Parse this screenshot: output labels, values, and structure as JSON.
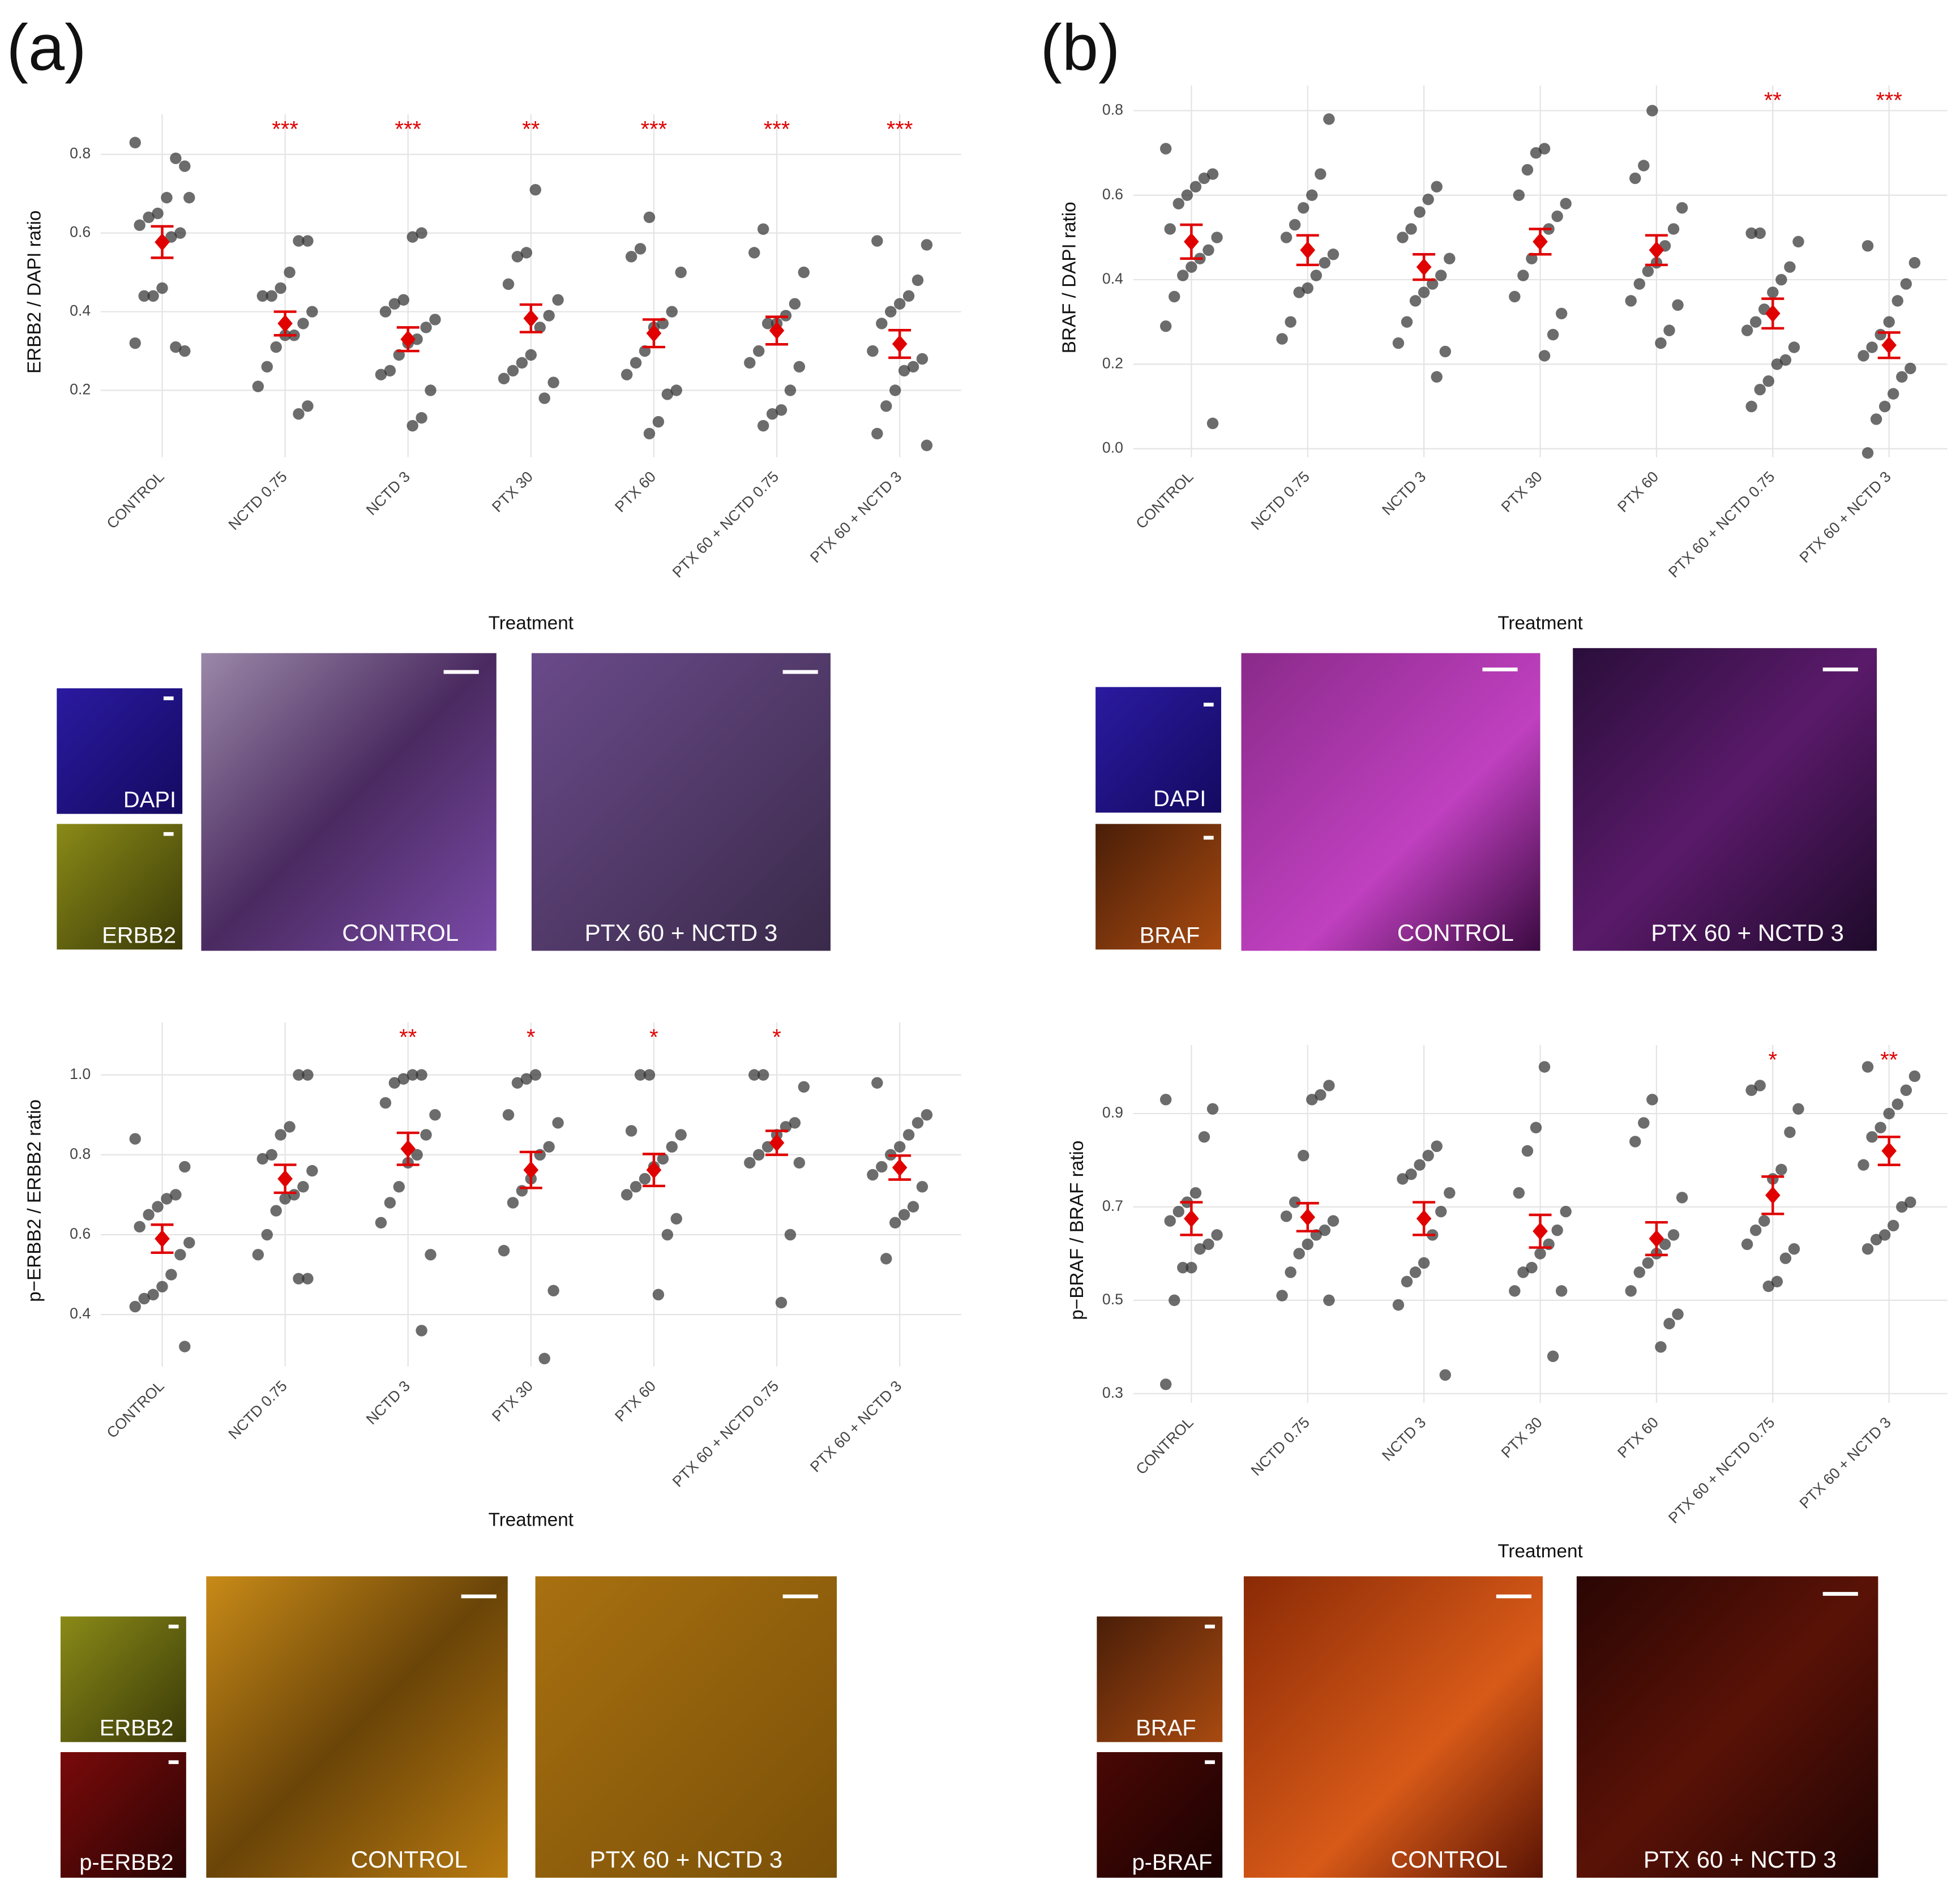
{
  "panels": [
    {
      "label": "(a)",
      "micrographs": [
        {
          "small": [
            "DAPI",
            "ERBB2"
          ],
          "large": [
            "CONTROL",
            "PTX 60 + NCTD 3"
          ]
        },
        {
          "small": [
            "ERBB2",
            "p-ERBB2"
          ],
          "large": [
            "CONTROL",
            "PTX 60 + NCTD 3"
          ]
        }
      ]
    },
    {
      "label": "(b)",
      "micrographs": [
        {
          "small": [
            "DAPI",
            "BRAF"
          ],
          "large": [
            "CONTROL",
            "PTX 60 + NCTD 3"
          ]
        },
        {
          "small": [
            "BRAF",
            "p-BRAF"
          ],
          "large": [
            "CONTROL",
            "PTX 60 + NCTD 3"
          ]
        }
      ]
    }
  ],
  "chart_data": [
    {
      "type": "jitter",
      "y_label": "ERBB2 / DAPI ratio",
      "x_label": "Treatment",
      "categories": [
        "CONTROL",
        "NCTD 0.75",
        "NCTD 3",
        "PTX 30",
        "PTX 60",
        "PTX 60 + NCTD 0.75",
        "PTX 60 + NCTD 3"
      ],
      "points": [
        [
          0.83,
          0.77,
          0.79,
          0.69,
          0.65,
          0.64,
          0.62,
          0.69,
          0.6,
          0.59,
          0.46,
          0.44,
          0.44,
          0.32,
          0.3,
          0.31
        ],
        [
          0.58,
          0.58,
          0.5,
          0.46,
          0.44,
          0.44,
          0.4,
          0.37,
          0.34,
          0.34,
          0.31,
          0.26,
          0.21,
          0.16,
          0.14
        ],
        [
          0.6,
          0.59,
          0.43,
          0.42,
          0.4,
          0.38,
          0.36,
          0.33,
          0.32,
          0.29,
          0.25,
          0.24,
          0.2,
          0.13,
          0.11
        ],
        [
          0.71,
          0.55,
          0.54,
          0.47,
          0.43,
          0.39,
          0.36,
          0.29,
          0.27,
          0.25,
          0.23,
          0.22,
          0.18
        ],
        [
          0.64,
          0.56,
          0.54,
          0.5,
          0.4,
          0.37,
          0.36,
          0.3,
          0.27,
          0.24,
          0.2,
          0.19,
          0.12,
          0.09
        ],
        [
          0.61,
          0.55,
          0.5,
          0.42,
          0.39,
          0.37,
          0.37,
          0.3,
          0.27,
          0.26,
          0.2,
          0.15,
          0.14,
          0.11
        ],
        [
          0.58,
          0.57,
          0.48,
          0.44,
          0.42,
          0.4,
          0.37,
          0.3,
          0.28,
          0.26,
          0.25,
          0.2,
          0.16,
          0.09,
          0.06
        ]
      ],
      "means": [
        0.577,
        0.37,
        0.33,
        0.383,
        0.345,
        0.352,
        0.318
      ],
      "errors": [
        0.04,
        0.03,
        0.03,
        0.035,
        0.035,
        0.035,
        0.035
      ],
      "significance": [
        null,
        "***",
        "***",
        "**",
        "***",
        "***",
        "***"
      ],
      "ylim": [
        0.03,
        0.87
      ],
      "yticks": [
        0.2,
        0.4,
        0.6,
        0.8
      ],
      "grid": true,
      "point_color": "#333333",
      "mean_color": "#e00000"
    },
    {
      "type": "jitter",
      "y_label": "p−ERBB2 / ERBB2 ratio",
      "x_label": "Treatment",
      "categories": [
        "CONTROL",
        "NCTD 0.75",
        "NCTD 3",
        "PTX 30",
        "PTX 60",
        "PTX 60 + NCTD 0.75",
        "PTX 60 + NCTD 3"
      ],
      "points": [
        [
          0.84,
          0.77,
          0.7,
          0.69,
          0.67,
          0.65,
          0.62,
          0.58,
          0.55,
          0.5,
          0.47,
          0.45,
          0.44,
          0.42,
          0.32
        ],
        [
          1.0,
          1.0,
          0.87,
          0.85,
          0.8,
          0.79,
          0.76,
          0.72,
          0.7,
          0.69,
          0.66,
          0.6,
          0.55,
          0.49,
          0.49
        ],
        [
          1.0,
          1.0,
          0.99,
          0.98,
          0.93,
          0.9,
          0.85,
          0.8,
          0.78,
          0.72,
          0.68,
          0.63,
          0.55,
          0.36
        ],
        [
          1.0,
          0.99,
          0.98,
          0.9,
          0.88,
          0.82,
          0.8,
          0.74,
          0.71,
          0.68,
          0.56,
          0.46,
          0.29
        ],
        [
          1.0,
          1.0,
          0.86,
          0.85,
          0.82,
          0.79,
          0.77,
          0.74,
          0.72,
          0.7,
          0.64,
          0.6,
          0.45
        ],
        [
          1.0,
          1.0,
          0.97,
          0.88,
          0.87,
          0.85,
          0.82,
          0.8,
          0.78,
          0.78,
          0.6,
          0.43
        ],
        [
          0.98,
          0.9,
          0.88,
          0.85,
          0.82,
          0.8,
          0.77,
          0.75,
          0.72,
          0.67,
          0.65,
          0.63,
          0.54
        ]
      ],
      "means": [
        0.59,
        0.74,
        0.815,
        0.762,
        0.762,
        0.83,
        0.768
      ],
      "errors": [
        0.035,
        0.035,
        0.04,
        0.045,
        0.04,
        0.03,
        0.03
      ],
      "significance": [
        null,
        null,
        "**",
        "*",
        "*",
        "*",
        null
      ],
      "ylim": [
        0.27,
        1.1
      ],
      "yticks": [
        0.4,
        0.6,
        0.8,
        {
          "value": 1,
          "label": "1.0"
        }
      ],
      "grid": true,
      "point_color": "#333333",
      "mean_color": "#e00000"
    },
    {
      "type": "jitter",
      "y_label": "BRAF / DAPI ratio",
      "x_label": "Treatment",
      "categories": [
        "CONTROL",
        "NCTD 0.75",
        "NCTD 3",
        "PTX 30",
        "PTX 60",
        "PTX 60 + NCTD 0.75",
        "PTX 60 + NCTD 3"
      ],
      "points": [
        [
          0.71,
          0.65,
          0.64,
          0.62,
          0.6,
          0.58,
          0.52,
          0.5,
          0.47,
          0.45,
          0.43,
          0.41,
          0.36,
          0.29,
          0.06
        ],
        [
          0.78,
          0.65,
          0.6,
          0.57,
          0.53,
          0.5,
          0.46,
          0.44,
          0.41,
          0.38,
          0.37,
          0.3,
          0.26
        ],
        [
          0.62,
          0.59,
          0.56,
          0.52,
          0.5,
          0.45,
          0.41,
          0.39,
          0.37,
          0.35,
          0.3,
          0.25,
          0.23,
          0.17
        ],
        [
          0.71,
          0.7,
          0.66,
          0.6,
          0.58,
          0.55,
          0.52,
          0.49,
          0.45,
          0.41,
          0.36,
          0.32,
          0.27,
          0.22
        ],
        [
          0.8,
          0.67,
          0.64,
          0.57,
          0.52,
          0.48,
          0.44,
          0.42,
          0.39,
          0.35,
          0.34,
          0.28,
          0.25
        ],
        [
          0.51,
          0.51,
          0.49,
          0.43,
          0.4,
          0.37,
          0.33,
          0.3,
          0.28,
          0.24,
          0.21,
          0.2,
          0.16,
          0.14,
          0.1
        ],
        [
          0.48,
          0.44,
          0.39,
          0.35,
          0.3,
          0.27,
          0.24,
          0.22,
          0.19,
          0.17,
          0.13,
          0.1,
          0.07,
          -0.01
        ]
      ],
      "means": [
        0.49,
        0.47,
        0.43,
        0.49,
        0.47,
        0.32,
        0.245
      ],
      "errors": [
        0.04,
        0.035,
        0.03,
        0.03,
        0.035,
        0.035,
        0.03
      ],
      "significance": [
        null,
        null,
        null,
        null,
        null,
        "**",
        "***"
      ],
      "ylim": [
        -0.02,
        0.83
      ],
      "yticks": [
        {
          "value": 0,
          "label": "0.0"
        },
        0.2,
        0.4,
        0.6,
        0.8
      ],
      "grid": true,
      "point_color": "#333333",
      "mean_color": "#e00000"
    },
    {
      "type": "jitter",
      "y_label": "p−BRAF / BRAF ratio",
      "x_label": "Treatment",
      "categories": [
        "CONTROL",
        "NCTD 0.75",
        "NCTD 3",
        "PTX 30",
        "PTX 60",
        "PTX 60 + NCTD 0.75",
        "PTX 60 + NCTD 3"
      ],
      "points": [
        [
          0.93,
          0.91,
          0.85,
          0.73,
          0.71,
          0.69,
          0.67,
          0.64,
          0.62,
          0.61,
          0.57,
          0.57,
          0.5,
          0.32
        ],
        [
          0.96,
          0.94,
          0.93,
          0.81,
          0.71,
          0.68,
          0.67,
          0.65,
          0.64,
          0.62,
          0.6,
          0.56,
          0.51,
          0.5
        ],
        [
          0.83,
          0.81,
          0.79,
          0.77,
          0.76,
          0.73,
          0.69,
          0.64,
          0.58,
          0.56,
          0.54,
          0.49,
          0.34
        ],
        [
          1.0,
          0.87,
          0.82,
          0.73,
          0.69,
          0.65,
          0.62,
          0.6,
          0.57,
          0.56,
          0.52,
          0.52,
          0.38
        ],
        [
          0.93,
          0.88,
          0.84,
          0.72,
          0.64,
          0.62,
          0.6,
          0.58,
          0.56,
          0.52,
          0.47,
          0.45,
          0.4
        ],
        [
          0.96,
          0.95,
          0.91,
          0.86,
          0.78,
          0.76,
          0.67,
          0.65,
          0.62,
          0.61,
          0.59,
          0.54,
          0.53
        ],
        [
          1.0,
          0.98,
          0.95,
          0.92,
          0.9,
          0.87,
          0.85,
          0.79,
          0.71,
          0.7,
          0.66,
          0.64,
          0.63,
          0.61
        ]
      ],
      "means": [
        0.675,
        0.678,
        0.675,
        0.648,
        0.632,
        0.725,
        0.82
      ],
      "errors": [
        0.035,
        0.03,
        0.035,
        0.035,
        0.035,
        0.04,
        0.03
      ],
      "significance": [
        null,
        null,
        null,
        null,
        null,
        "*",
        "**"
      ],
      "ylim": [
        0.28,
        1.02
      ],
      "yticks": [
        0.3,
        0.5,
        0.7,
        0.9
      ],
      "grid": true,
      "point_color": "#333333",
      "mean_color": "#e00000"
    }
  ]
}
